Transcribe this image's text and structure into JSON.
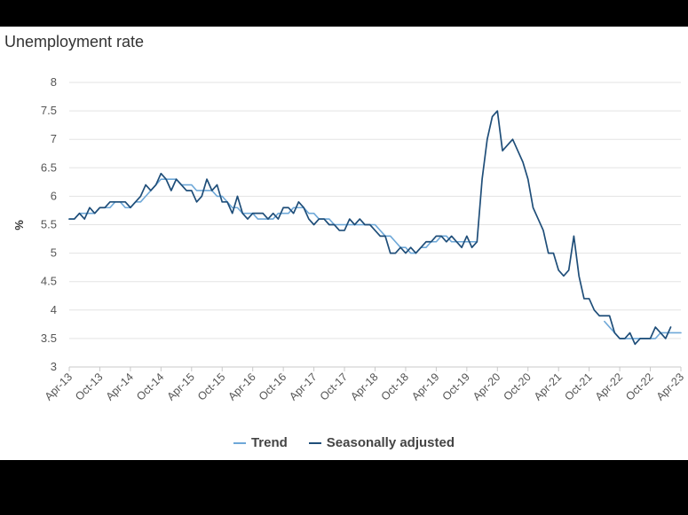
{
  "chart_data": {
    "type": "line",
    "title": "Unemployment rate",
    "ylabel": "%",
    "ylim": [
      3,
      8
    ],
    "y_ticks": [
      "8",
      "7.5",
      "7",
      "6.5",
      "6",
      "5.5",
      "5",
      "4.5",
      "4",
      "3.5",
      "3"
    ],
    "x_tick_labels": [
      "Apr-13",
      "Oct-13",
      "Apr-14",
      "Oct-14",
      "Apr-15",
      "Oct-15",
      "Apr-16",
      "Oct-16",
      "Apr-17",
      "Oct-17",
      "Apr-18",
      "Oct-18",
      "Apr-19",
      "Oct-19",
      "Apr-20",
      "Oct-20",
      "Apr-21",
      "Oct-21",
      "Apr-22",
      "Oct-22",
      "Apr-23"
    ],
    "x_start": "2013-04",
    "x_end": "2023-04",
    "grid": "horizontal",
    "legend_position": "bottom",
    "series": [
      {
        "name": "Trend",
        "color": "#6ea8d8",
        "segments": [
          {
            "start": "2013-04",
            "values": [
              5.6,
              5.6,
              5.7,
              5.7,
              5.7,
              5.7,
              5.8,
              5.8,
              5.8,
              5.9,
              5.9,
              5.8,
              5.8,
              5.9,
              5.9,
              6.0,
              6.1,
              6.2,
              6.3,
              6.3,
              6.3,
              6.3,
              6.2,
              6.2,
              6.2,
              6.1,
              6.1,
              6.1,
              6.1,
              6.0,
              6.0,
              5.9,
              5.8,
              5.8,
              5.7,
              5.7,
              5.7,
              5.6,
              5.6,
              5.6,
              5.6,
              5.7,
              5.7,
              5.7,
              5.8,
              5.8,
              5.8,
              5.7,
              5.7,
              5.6,
              5.6,
              5.6,
              5.5,
              5.5,
              5.5,
              5.5,
              5.5,
              5.5,
              5.5,
              5.5,
              5.5,
              5.4,
              5.3,
              5.3,
              5.2,
              5.1,
              5.1,
              5.0,
              5.0,
              5.1,
              5.1,
              5.2,
              5.2,
              5.3,
              5.3,
              5.2,
              5.2,
              5.2,
              5.2,
              5.2,
              5.2
            ]
          },
          {
            "start": "2022-01",
            "values": [
              3.8,
              3.7,
              3.6,
              3.5,
              3.5,
              3.5,
              3.5,
              3.5,
              3.5,
              3.5,
              3.5,
              3.6,
              3.6,
              3.6,
              3.6,
              3.6
            ]
          }
        ]
      },
      {
        "name": "Seasonally adjusted",
        "color": "#1f4e79",
        "segments": [
          {
            "start": "2013-04",
            "values": [
              5.6,
              5.6,
              5.7,
              5.6,
              5.8,
              5.7,
              5.8,
              5.8,
              5.9,
              5.9,
              5.9,
              5.9,
              5.8,
              5.9,
              6.0,
              6.2,
              6.1,
              6.2,
              6.4,
              6.3,
              6.1,
              6.3,
              6.2,
              6.1,
              6.1,
              5.9,
              6.0,
              6.3,
              6.1,
              6.2,
              5.9,
              5.9,
              5.7,
              6.0,
              5.7,
              5.6,
              5.7,
              5.7,
              5.7,
              5.6,
              5.7,
              5.6,
              5.8,
              5.8,
              5.7,
              5.9,
              5.8,
              5.6,
              5.5,
              5.6,
              5.6,
              5.5,
              5.5,
              5.4,
              5.4,
              5.6,
              5.5,
              5.6,
              5.5,
              5.5,
              5.4,
              5.3,
              5.3,
              5.0,
              5.0,
              5.1,
              5.0,
              5.1,
              5.0,
              5.1,
              5.2,
              5.2,
              5.3,
              5.3,
              5.2,
              5.3,
              5.2,
              5.1,
              5.3,
              5.1,
              5.2,
              6.3,
              7.0,
              7.4,
              7.5,
              6.8,
              6.9,
              7.0,
              6.8,
              6.6,
              6.3,
              5.8,
              5.6,
              5.4,
              5.0,
              5.0,
              4.7,
              4.6,
              4.7,
              5.3,
              4.6,
              4.2,
              4.2,
              4.0,
              3.9,
              3.9,
              3.9,
              3.6,
              3.5,
              3.5,
              3.6,
              3.4,
              3.5,
              3.5,
              3.5,
              3.7,
              3.6,
              3.5,
              3.7
            ]
          }
        ]
      }
    ]
  }
}
